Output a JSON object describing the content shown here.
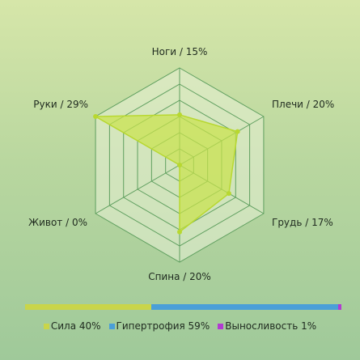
{
  "chart_data": {
    "type": "radar",
    "axes": [
      {
        "label": "Ноги / 15%",
        "value": 15
      },
      {
        "label": "Плечи / 20%",
        "value": 20
      },
      {
        "label": "Грудь / 17%",
        "value": 17
      },
      {
        "label": "Спина / 20%",
        "value": 20
      },
      {
        "label": "Живот / 0%",
        "value": 0
      },
      {
        "label": "Руки / 29%",
        "value": 29
      }
    ],
    "rings": 6,
    "max": 29,
    "colors": {
      "fill": "#c9e34a",
      "stroke": "#b8d830",
      "grid": "#5f9f5f",
      "grid_fill": "#e8f1d6"
    }
  },
  "summary_bar": {
    "segments": [
      {
        "label": "Сила 40%",
        "value": 40,
        "color": "#c9d54a"
      },
      {
        "label": "Гипертрофия 59%",
        "value": 59,
        "color": "#4a9fd8"
      },
      {
        "label": "Выносливость 1%",
        "value": 1,
        "color": "#b23bd1"
      }
    ]
  }
}
